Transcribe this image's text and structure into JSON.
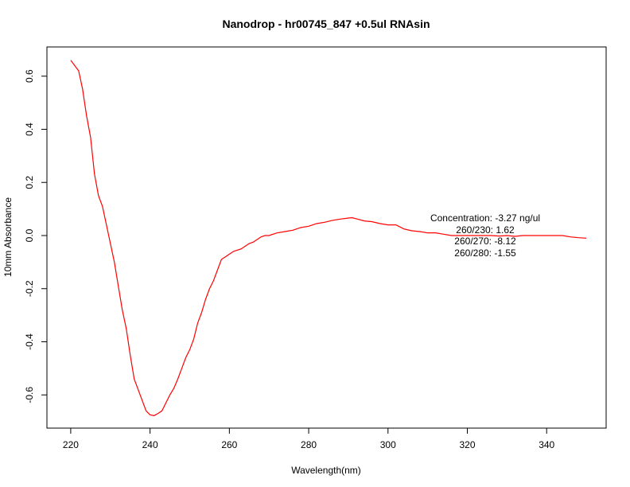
{
  "chart_data": {
    "type": "line",
    "title": "Nanodrop - hr00745_847 +0.5ul RNAsin",
    "xlabel": "Wavelength(nm)",
    "ylabel": "10mm Absorbance",
    "xlim": [
      214,
      355
    ],
    "ylim": [
      -0.725,
      0.71
    ],
    "xticks": [
      220,
      240,
      260,
      280,
      300,
      320,
      340
    ],
    "yticks": [
      -0.6,
      -0.4,
      -0.2,
      0.0,
      0.2,
      0.4,
      0.6
    ],
    "xtick_labels": [
      "220",
      "240",
      "260",
      "280",
      "300",
      "320",
      "340"
    ],
    "ytick_labels": [
      "-0.6",
      "-0.4",
      "-0.2",
      "0.0",
      "0.2",
      "0.4",
      "0.6"
    ],
    "grid": false,
    "series_color": "#ff0000",
    "annotations": [
      "Concentration: -3.27 ng/ul",
      "260/230: 1.62",
      "260/270: -8.12",
      "260/280: -1.55"
    ],
    "series": [
      {
        "x": [
          220,
          221,
          222,
          223,
          224,
          225,
          226,
          227,
          228,
          229,
          230,
          231,
          232,
          233,
          234,
          235,
          236,
          237,
          238,
          239,
          240,
          241,
          242,
          243,
          244,
          245,
          246,
          247,
          248,
          249,
          250,
          251,
          252,
          253,
          254,
          255,
          256,
          257,
          258,
          259,
          260,
          261,
          262,
          263,
          264,
          265,
          266,
          267,
          268,
          269,
          270,
          272,
          274,
          276,
          278,
          280,
          282,
          284,
          286,
          288,
          290,
          291,
          292,
          294,
          296,
          298,
          300,
          302,
          304,
          306,
          308,
          310,
          312,
          314,
          316,
          318,
          320,
          322,
          324,
          326,
          328,
          330,
          332,
          334,
          336,
          338,
          340,
          342,
          344,
          346,
          348,
          350
        ],
        "y": [
          0.66,
          0.64,
          0.62,
          0.55,
          0.45,
          0.37,
          0.23,
          0.15,
          0.11,
          0.04,
          -0.03,
          -0.1,
          -0.19,
          -0.28,
          -0.35,
          -0.45,
          -0.54,
          -0.58,
          -0.62,
          -0.66,
          -0.675,
          -0.678,
          -0.67,
          -0.66,
          -0.63,
          -0.6,
          -0.575,
          -0.54,
          -0.5,
          -0.46,
          -0.43,
          -0.39,
          -0.33,
          -0.29,
          -0.24,
          -0.2,
          -0.17,
          -0.13,
          -0.09,
          -0.08,
          -0.07,
          -0.06,
          -0.055,
          -0.05,
          -0.04,
          -0.03,
          -0.025,
          -0.015,
          -0.005,
          0.0,
          0.0,
          0.01,
          0.015,
          0.02,
          0.03,
          0.035,
          0.045,
          0.05,
          0.057,
          0.062,
          0.066,
          0.067,
          0.063,
          0.055,
          0.052,
          0.045,
          0.04,
          0.04,
          0.025,
          0.018,
          0.015,
          0.01,
          0.01,
          0.005,
          0.0,
          0.0,
          0.0,
          0.0,
          0.0,
          0.0,
          -0.002,
          0.0,
          -0.003,
          0.0,
          0.0,
          0.0,
          0.0,
          0.0,
          0.0,
          -0.005,
          -0.008,
          -0.01
        ]
      }
    ]
  }
}
